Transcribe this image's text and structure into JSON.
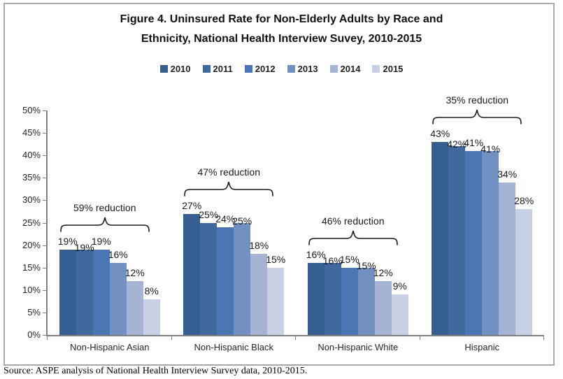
{
  "title": {
    "line1": "Figure 4. Uninsured Rate for Non-Elderly Adults by Race and",
    "line2": "Ethnicity, National Health Interview Suvey, 2010-2015"
  },
  "source": "Source: ASPE analysis of National Health Interview Survey data, 2010-2015.",
  "chart_data": {
    "type": "bar",
    "title": "Figure 4. Uninsured Rate for Non-Elderly Adults by Race and Ethnicity, National Health Interview Suvey, 2010-2015",
    "categories": [
      "Non-Hispanic Asian",
      "Non-Hispanic Black",
      "Non-Hispanic White",
      "Hispanic"
    ],
    "series": [
      {
        "name": "2010",
        "color": "#365F91",
        "values": [
          19,
          27,
          16,
          43
        ]
      },
      {
        "name": "2011",
        "color": "#41699E",
        "values": [
          19,
          25,
          16,
          42
        ]
      },
      {
        "name": "2012",
        "color": "#4A77B3",
        "values": [
          19,
          24,
          15,
          41
        ]
      },
      {
        "name": "2013",
        "color": "#7390C2",
        "values": [
          16,
          25,
          15,
          41
        ]
      },
      {
        "name": "2014",
        "color": "#A5B4D5",
        "values": [
          12,
          18,
          12,
          34
        ]
      },
      {
        "name": "2015",
        "color": "#C8D1E4",
        "values": [
          8,
          15,
          9,
          28
        ]
      }
    ],
    "annotations": [
      "59% reduction",
      "47% reduction",
      "46% reduction",
      "35% reduction"
    ],
    "data_labels": true,
    "label_format": "percent",
    "xlabel": "",
    "ylabel": "",
    "ylim": [
      0,
      50
    ],
    "ytick_step": 5,
    "ytick_format": "percent",
    "grid": false,
    "legend_position": "top"
  }
}
